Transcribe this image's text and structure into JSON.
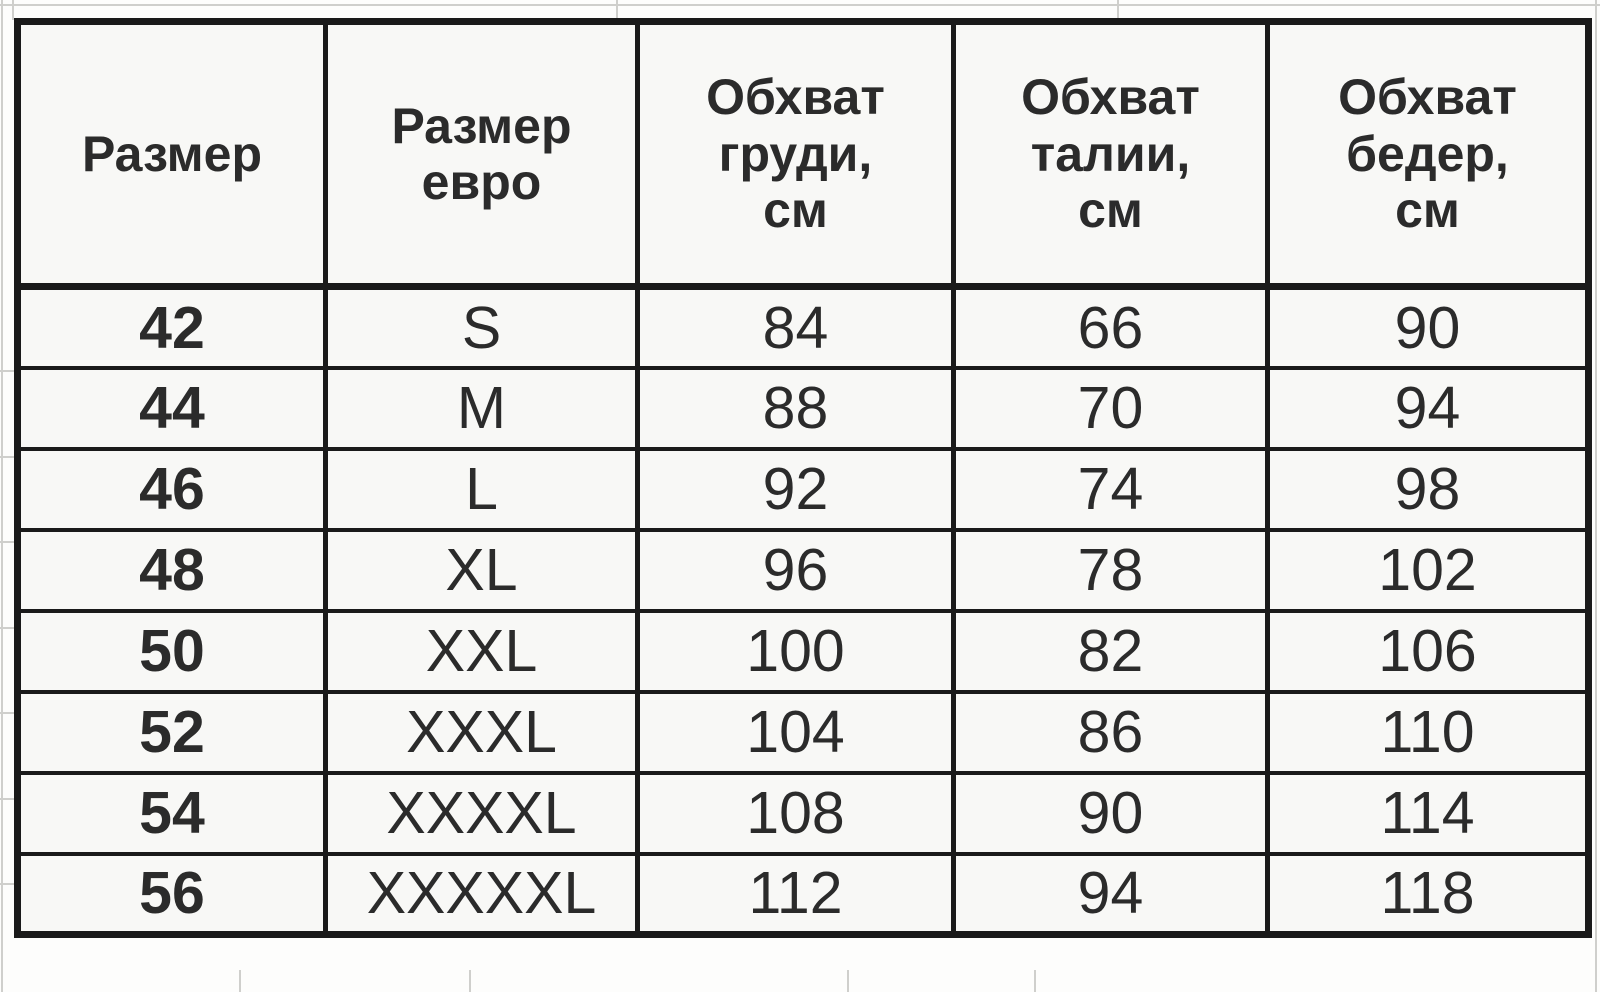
{
  "chart_data": {
    "type": "table",
    "title": "",
    "columns": [
      "Размер",
      "Размер евро",
      "Обхват груди, см",
      "Обхват талии, см",
      "Обхват бедер, см"
    ],
    "rows": [
      [
        "42",
        "S",
        "84",
        "66",
        "90"
      ],
      [
        "44",
        "M",
        "88",
        "70",
        "94"
      ],
      [
        "46",
        "L",
        "92",
        "74",
        "98"
      ],
      [
        "48",
        "XL",
        "96",
        "78",
        "102"
      ],
      [
        "50",
        "XXL",
        "100",
        "82",
        "106"
      ],
      [
        "52",
        "XXXL",
        "104",
        "86",
        "110"
      ],
      [
        "54",
        "XXXXL",
        "108",
        "90",
        "114"
      ],
      [
        "56",
        "XXXXXL",
        "112",
        "94",
        "118"
      ]
    ]
  },
  "table": {
    "display_columns": [
      {
        "id": "size",
        "label": "Размер"
      },
      {
        "id": "euro-size",
        "label": "Размер\nевро"
      },
      {
        "id": "chest",
        "label": "Обхват\nгруди,\nсм"
      },
      {
        "id": "waist",
        "label": "Обхват\nталии,\nсм"
      },
      {
        "id": "hips",
        "label": "Обхват\nбедер,\nсм"
      }
    ]
  },
  "colors": {
    "table_border": "#1a1a1a",
    "text": "#2b2b2b",
    "cell_background": "#f8f8f6",
    "page_background": "#fdfdfc",
    "gridline": "#cfcfcc"
  }
}
